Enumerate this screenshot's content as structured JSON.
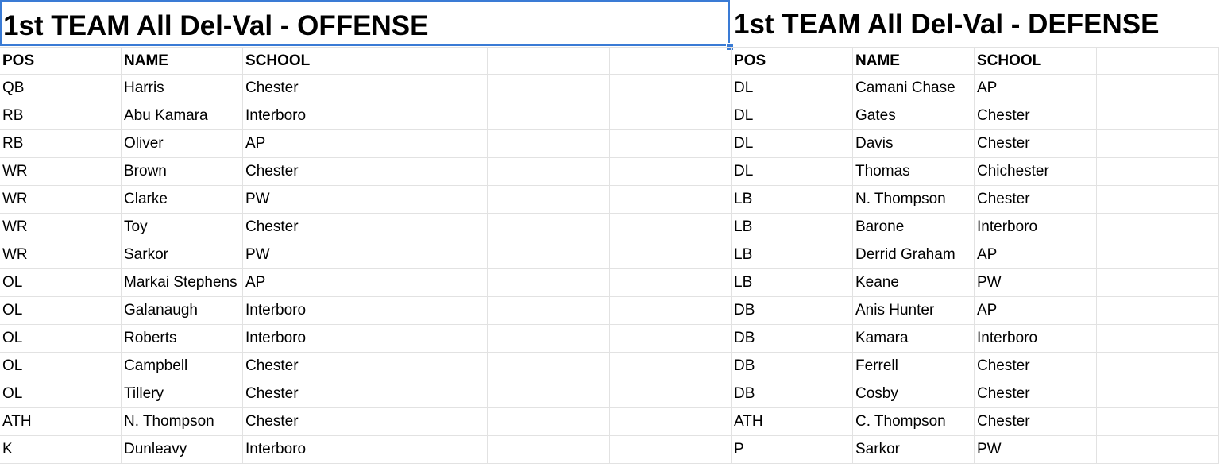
{
  "offense": {
    "title": "1st TEAM All Del-Val - OFFENSE",
    "headers": [
      "POS",
      "NAME",
      "SCHOOL"
    ],
    "rows": [
      [
        "QB",
        "Harris",
        "Chester"
      ],
      [
        "RB",
        "Abu Kamara",
        "Interboro"
      ],
      [
        "RB",
        "Oliver",
        "AP"
      ],
      [
        "WR",
        "Brown",
        "Chester"
      ],
      [
        "WR",
        "Clarke",
        "PW"
      ],
      [
        "WR",
        "Toy",
        "Chester"
      ],
      [
        "WR",
        "Sarkor",
        "PW"
      ],
      [
        "OL",
        "Markai Stephens",
        "AP"
      ],
      [
        "OL",
        "Galanaugh",
        "Interboro"
      ],
      [
        "OL",
        "Roberts",
        "Interboro"
      ],
      [
        "OL",
        "Campbell",
        "Chester"
      ],
      [
        "OL",
        "Tillery",
        "Chester"
      ],
      [
        "ATH",
        "N. Thompson",
        "Chester"
      ],
      [
        "K",
        "Dunleavy",
        "Interboro"
      ]
    ]
  },
  "defense": {
    "title": "1st TEAM All Del-Val - DEFENSE",
    "headers": [
      "POS",
      "NAME",
      "SCHOOL"
    ],
    "rows": [
      [
        "DL",
        "Camani Chase",
        "AP"
      ],
      [
        "DL",
        "Gates",
        "Chester"
      ],
      [
        "DL",
        "Davis",
        "Chester"
      ],
      [
        "DL",
        "Thomas",
        "Chichester"
      ],
      [
        "LB",
        "N. Thompson",
        "Chester"
      ],
      [
        "LB",
        "Barone",
        "Interboro"
      ],
      [
        "LB",
        "Derrid Graham",
        "AP"
      ],
      [
        "LB",
        "Keane",
        "PW"
      ],
      [
        "DB",
        "Anis Hunter",
        "AP"
      ],
      [
        "DB",
        "Kamara",
        "Interboro"
      ],
      [
        "DB",
        "Ferrell",
        "Chester"
      ],
      [
        "DB",
        "Cosby",
        "Chester"
      ],
      [
        "ATH",
        "C. Thompson",
        "Chester"
      ],
      [
        "P",
        "Sarkor",
        "PW"
      ]
    ]
  },
  "colors": {
    "selection": "#3a7bd5",
    "gridline": "#e2e2e2"
  }
}
